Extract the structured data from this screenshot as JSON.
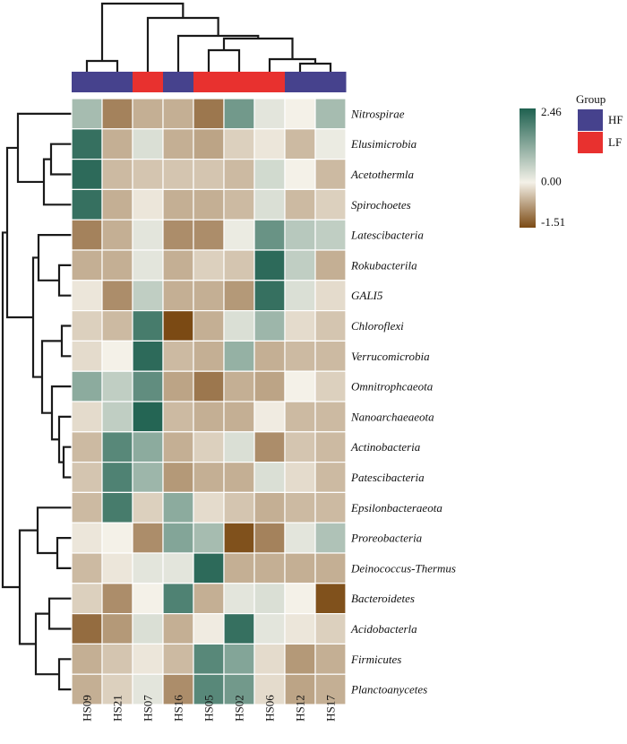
{
  "chart_data": {
    "type": "heatmap",
    "columns": [
      "HS09",
      "HS21",
      "HS07",
      "HS16",
      "HS05",
      "HS02",
      "HS06",
      "HS12",
      "HS17"
    ],
    "rows": [
      "Nitrospirae",
      "Elusimicrobia",
      "Acetothermla",
      "Spirochoetes",
      "Latescibacteria",
      "Rokubacterila",
      "GALI5",
      "Chloroflexi",
      "Verrucomicrobia",
      "Omnitrophcaeota",
      "Nanoarchaeaeota",
      "Actinobacteria",
      "Patescibacteria",
      "Epsilonbacteraeota",
      "Proreobacteria",
      "Deinococcus-Thermus",
      "Bacteroidetes",
      "Acidobacterla",
      "Firmicutes",
      "Planctoanycetes"
    ],
    "values": [
      [
        0.9,
        -1.0,
        -0.6,
        -0.6,
        -1.1,
        1.5,
        0.2,
        0.0,
        0.9
      ],
      [
        2.2,
        -0.6,
        0.3,
        -0.6,
        -0.7,
        -0.3,
        -0.1,
        -0.5,
        0.1
      ],
      [
        2.3,
        -0.5,
        -0.4,
        -0.4,
        -0.4,
        -0.5,
        0.4,
        0.0,
        -0.5
      ],
      [
        2.2,
        -0.6,
        -0.1,
        -0.6,
        -0.6,
        -0.5,
        0.3,
        -0.5,
        -0.3
      ],
      [
        -1.0,
        -0.6,
        0.2,
        -0.9,
        -0.9,
        0.1,
        1.6,
        0.7,
        0.6
      ],
      [
        -0.6,
        -0.6,
        0.2,
        -0.6,
        -0.3,
        -0.4,
        2.3,
        0.6,
        -0.6
      ],
      [
        -0.1,
        -0.9,
        0.6,
        -0.6,
        -0.6,
        -0.8,
        2.2,
        0.3,
        -0.2
      ],
      [
        -0.3,
        -0.5,
        2.0,
        -1.51,
        -0.6,
        0.3,
        1.0,
        -0.2,
        -0.4
      ],
      [
        -0.2,
        0.0,
        2.3,
        -0.5,
        -0.6,
        1.1,
        -0.6,
        -0.5,
        -0.5
      ],
      [
        1.2,
        0.6,
        1.7,
        -0.7,
        -1.1,
        -0.6,
        -0.7,
        0.0,
        -0.3
      ],
      [
        -0.2,
        0.6,
        2.4,
        -0.5,
        -0.6,
        -0.6,
        -0.05,
        -0.5,
        -0.5
      ],
      [
        -0.5,
        1.8,
        1.2,
        -0.6,
        -0.3,
        0.3,
        -0.9,
        -0.4,
        -0.5
      ],
      [
        -0.4,
        1.9,
        1.0,
        -0.8,
        -0.6,
        -0.6,
        0.3,
        -0.2,
        -0.5
      ],
      [
        -0.5,
        2.0,
        -0.3,
        1.2,
        -0.2,
        -0.4,
        -0.6,
        -0.5,
        -0.5
      ],
      [
        -0.1,
        0.0,
        -0.9,
        1.3,
        0.9,
        -1.45,
        -1.0,
        0.2,
        0.8
      ],
      [
        -0.5,
        -0.1,
        0.2,
        0.2,
        2.3,
        -0.6,
        -0.6,
        -0.6,
        -0.6
      ],
      [
        -0.3,
        -0.9,
        -0.0,
        1.9,
        -0.6,
        0.2,
        0.3,
        0.0,
        -1.45
      ],
      [
        -1.2,
        -0.8,
        0.3,
        -0.6,
        -0.05,
        2.2,
        0.2,
        -0.1,
        -0.3
      ],
      [
        -0.6,
        -0.4,
        -0.1,
        -0.5,
        1.8,
        1.3,
        -0.2,
        -0.8,
        -0.6
      ],
      [
        -0.6,
        -0.3,
        0.2,
        -0.9,
        1.8,
        1.5,
        -0.2,
        -0.7,
        -0.6
      ]
    ],
    "column_groups": [
      "HF",
      "HF",
      "LF",
      "HF",
      "LF",
      "LF",
      "LF",
      "HF",
      "HF"
    ],
    "group_legend": {
      "title": "Group",
      "items": [
        {
          "label": "HF",
          "color": "#46428d"
        },
        {
          "label": "LF",
          "color": "#e8312f"
        }
      ]
    },
    "color_scale": {
      "min": -1.51,
      "mid": 0.0,
      "max": 2.46,
      "ticks": [
        "2.46",
        "0.00",
        "-1.51"
      ],
      "colors": {
        "low": "#7b4a14",
        "mid": "#f4f1e8",
        "high": "#1f6150"
      }
    },
    "dendrogram": {
      "column_clustering": true,
      "row_clustering": true
    }
  }
}
